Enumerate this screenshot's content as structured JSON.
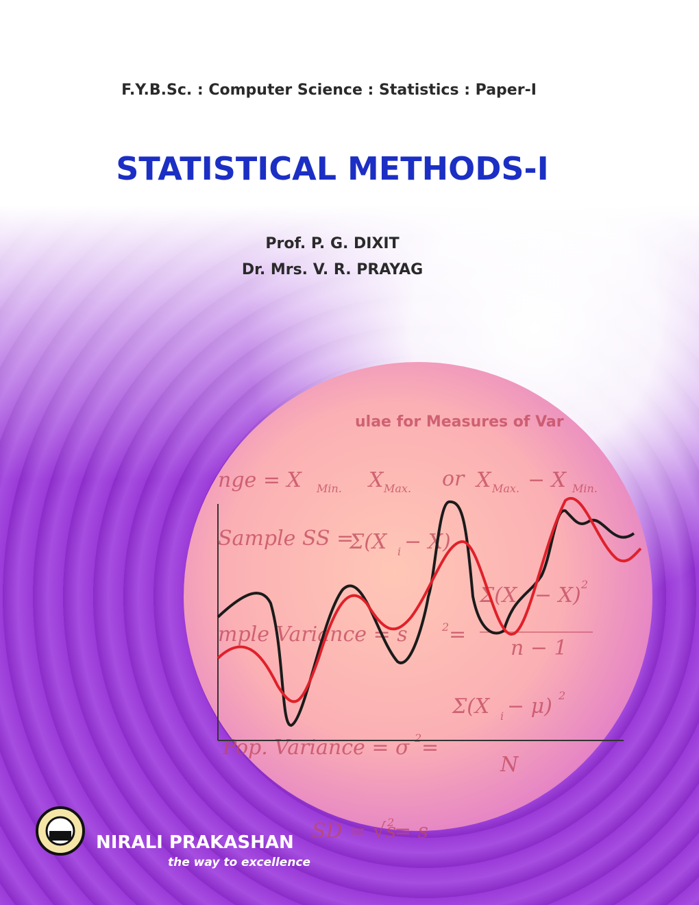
{
  "cover": {
    "series_line": "F.Y.B.Sc. : Computer Science : Statistics : Paper-I",
    "title": "STATISTICAL METHODS-I",
    "authors": [
      "Prof. P. G. DIXIT",
      "Dr.  Mrs. V. R. PRAYAG"
    ],
    "publisher": "NIRALI PRAKASHAN",
    "tagline": "the way to excellence",
    "formula_texts": [
      "ulae for Measures of Var",
      "nge = X",
      "Min.",
      "X",
      "Max.",
      "or",
      "X",
      "Max.",
      "− X",
      "Min.",
      "Sample  SS =",
      "Σ(X",
      "i",
      " − X)",
      "mple  Variance = s",
      "2",
      " =",
      "Σ(X",
      "i",
      " − X)",
      "2",
      "n − 1",
      "Σ(X",
      "i",
      " − μ)",
      "2",
      "Pop.  Variance = σ",
      "2",
      " =",
      "N",
      "SD = √s",
      "2",
      " = s"
    ]
  }
}
